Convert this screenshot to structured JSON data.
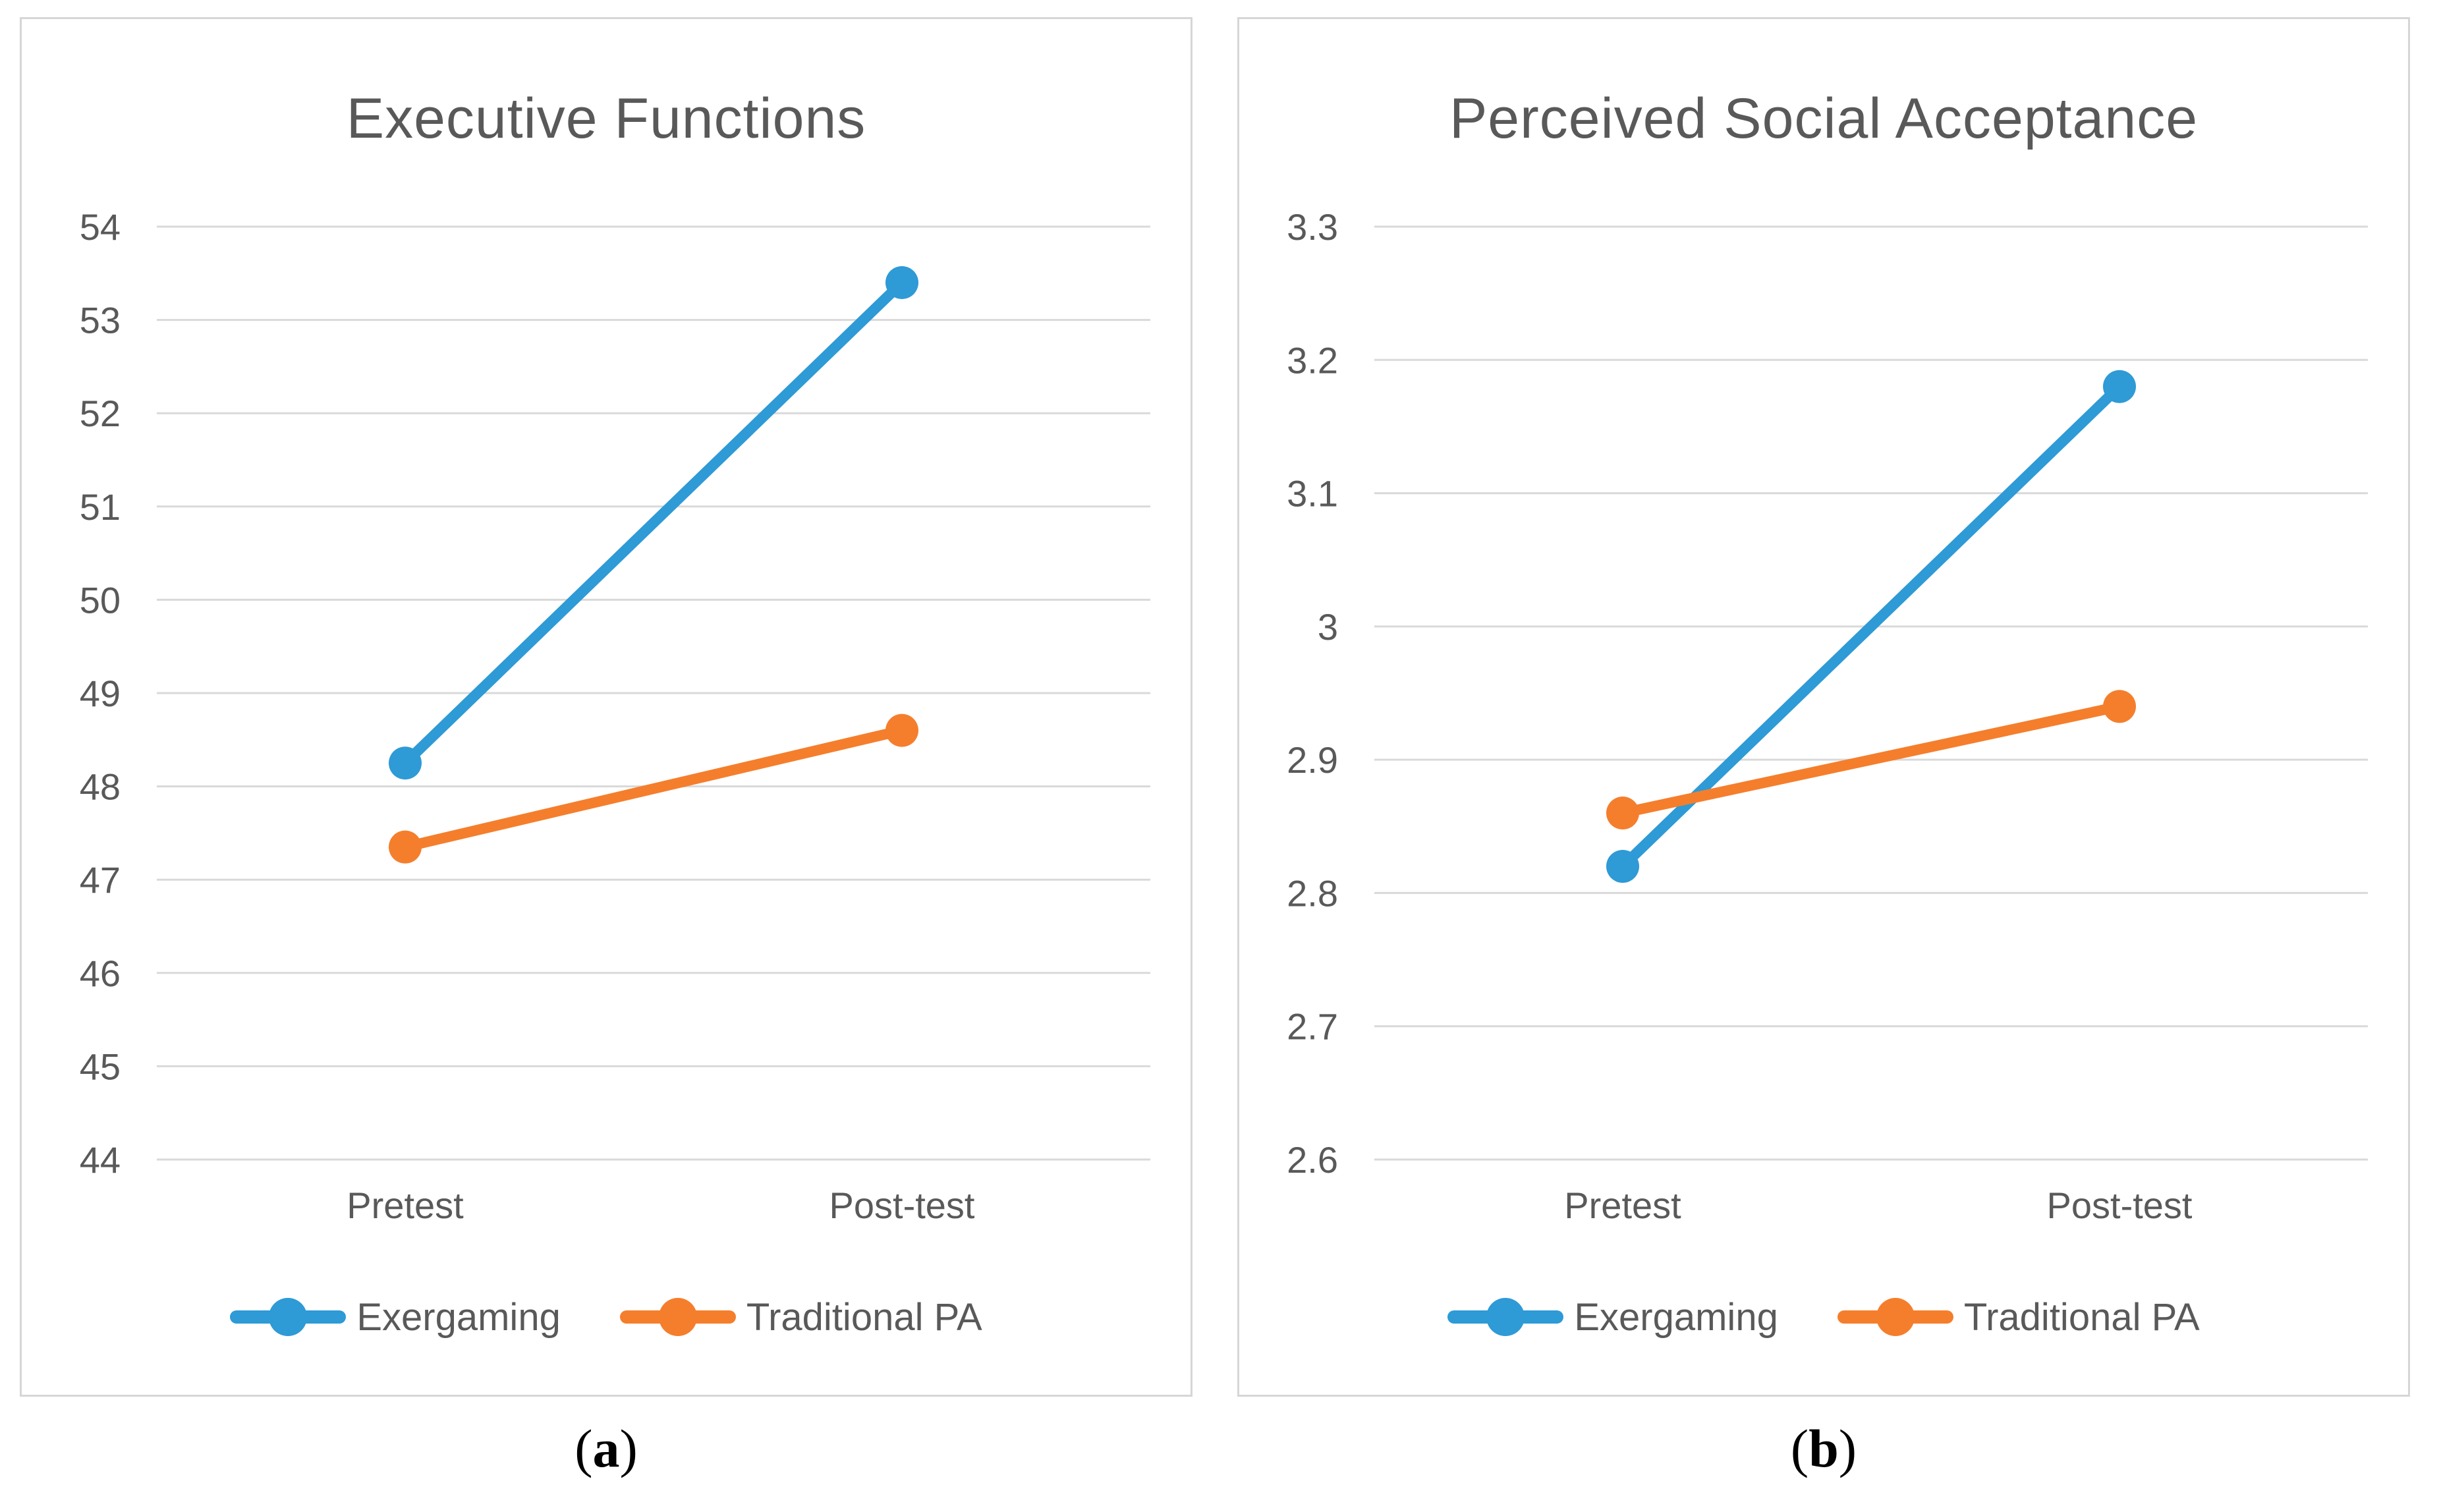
{
  "figure": {
    "background_color": "#ffffff",
    "grid_color": "#d9d9d9",
    "text_color": "#595959",
    "caption_color": "#000000",
    "series_colors": {
      "exergaming_blue": "#2e9ad6",
      "traditional_orange": "#f57e2c"
    }
  },
  "chart_data": [
    {
      "type": "line",
      "title": "Executive Functions",
      "categories": [
        "Pretest",
        "Post-test"
      ],
      "series": [
        {
          "name": "Exergaming",
          "color": "#2e9ad6",
          "values": [
            48.25,
            53.4
          ]
        },
        {
          "name": "Traditional PA",
          "color": "#f57e2c",
          "values": [
            47.35,
            48.6
          ]
        }
      ],
      "ylim": [
        44,
        54
      ],
      "y_tick_values": [
        54,
        53,
        52,
        51,
        50,
        49,
        48,
        47,
        46,
        45,
        44
      ],
      "y_tick_labels": [
        "54",
        "53",
        "52",
        "51",
        "50",
        "49",
        "48",
        "47",
        "46",
        "45",
        "44"
      ],
      "grid": "horizontal",
      "legend_position": "bottom",
      "caption": {
        "prefix": "(",
        "label": "a",
        "suffix": ")"
      }
    },
    {
      "type": "line",
      "title": "Perceived Social Acceptance",
      "categories": [
        "Pretest",
        "Post-test"
      ],
      "series": [
        {
          "name": "Exergaming",
          "color": "#2e9ad6",
          "values": [
            2.82,
            3.18
          ]
        },
        {
          "name": "Traditional PA",
          "color": "#f57e2c",
          "values": [
            2.86,
            2.94
          ]
        }
      ],
      "ylim": [
        2.6,
        3.3
      ],
      "y_tick_values": [
        3.3,
        3.2,
        3.1,
        3.0,
        2.9,
        2.8,
        2.7,
        2.6
      ],
      "y_tick_labels": [
        "3.3",
        "3.2",
        "3.1",
        "3",
        "2.9",
        "2.8",
        "2.7",
        "2.6"
      ],
      "grid": "horizontal",
      "legend_position": "bottom",
      "caption": {
        "prefix": "(",
        "label": "b",
        "suffix": ")"
      }
    }
  ]
}
